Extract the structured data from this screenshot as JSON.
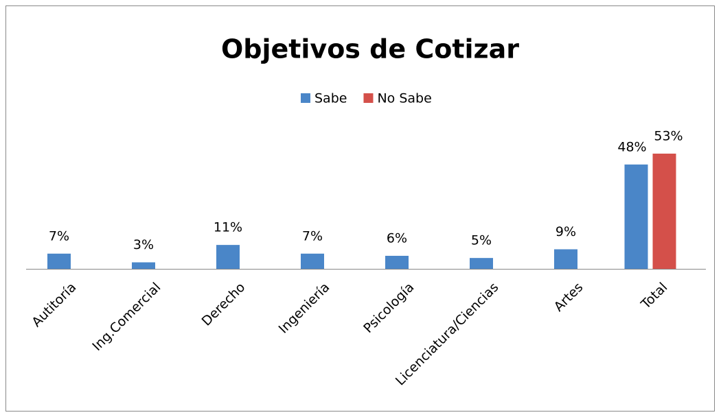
{
  "chart_data": {
    "type": "bar",
    "title": "Objetivos de Cotizar",
    "categories": [
      "Autitoría",
      "Ing.Comercial",
      "Derecho",
      "Ingeniería",
      "Psicología",
      "Licenciatura/Ciencias",
      "Artes",
      "Total"
    ],
    "series": [
      {
        "name": "Sabe",
        "color": "#4a86c8",
        "values": [
          7,
          3,
          11,
          7,
          6,
          5,
          9,
          48
        ],
        "value_labels": [
          "7%",
          "3%",
          "11%",
          "7%",
          "6%",
          "5%",
          "9%",
          "48%"
        ]
      },
      {
        "name": "No Sabe",
        "color": "#d4504a",
        "values": [
          null,
          null,
          null,
          null,
          null,
          null,
          null,
          53
        ],
        "value_labels": [
          null,
          null,
          null,
          null,
          null,
          null,
          null,
          "53%"
        ]
      }
    ],
    "legend": "top"
  }
}
